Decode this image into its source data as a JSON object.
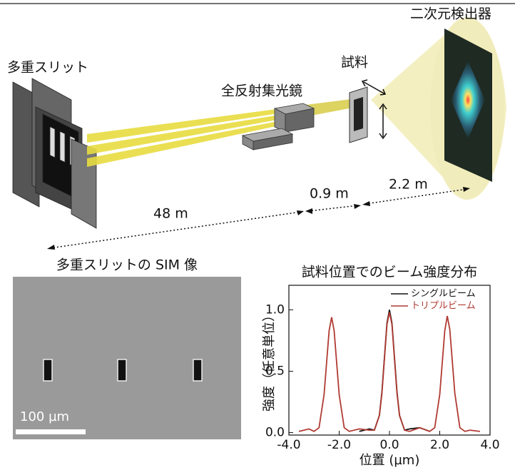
{
  "diagram": {
    "slit_label": "多重スリット",
    "mirror_label": "全反射集光鏡",
    "sample_label": "試料",
    "detector_label": "二次元検出器",
    "dist_1": "48 m",
    "dist_2": "0.9 m",
    "dist_3": "2.2 m"
  },
  "sim_image": {
    "title": "多重スリットの SIM 像",
    "scale_bar": "100 µm"
  },
  "chart_data": {
    "type": "line",
    "title": "試料位置でのビーム強度分布",
    "x_label": "位置 (µm)",
    "y_label": "強度（任意単位）",
    "x": [
      -3.6,
      -3.2,
      -3.0,
      -2.8,
      -2.6,
      -2.5,
      -2.4,
      -2.3,
      -2.2,
      -2.1,
      -2.0,
      -1.8,
      -1.6,
      -1.2,
      -0.8,
      -0.6,
      -0.4,
      -0.3,
      -0.2,
      -0.1,
      0,
      0.1,
      0.2,
      0.3,
      0.4,
      0.6,
      0.8,
      1.2,
      1.6,
      1.8,
      2.0,
      2.1,
      2.2,
      2.3,
      2.4,
      2.5,
      2.6,
      2.8,
      3.0,
      3.2,
      3.6
    ],
    "series": [
      {
        "name": "シングルビーム",
        "color": "#111111",
        "values": [
          null,
          null,
          null,
          null,
          null,
          null,
          null,
          null,
          null,
          null,
          null,
          null,
          null,
          0.01,
          0.03,
          0.02,
          0.14,
          0.33,
          0.61,
          0.89,
          1.0,
          0.89,
          0.61,
          0.33,
          0.14,
          0.02,
          0.03,
          0.04,
          0.01,
          null,
          null,
          null,
          null,
          null,
          null,
          null,
          null,
          null,
          null,
          null,
          null
        ]
      },
      {
        "name": "トリプルビーム",
        "color": "#b03a32",
        "values": [
          0.01,
          0.03,
          0.01,
          0.04,
          0.31,
          0.57,
          0.83,
          0.94,
          0.83,
          0.57,
          0.31,
          0.04,
          0.01,
          0.03,
          0.02,
          0.02,
          0.14,
          0.32,
          0.6,
          0.88,
          0.98,
          0.88,
          0.6,
          0.32,
          0.14,
          0.02,
          0.01,
          0.04,
          0.01,
          0.04,
          0.31,
          0.57,
          0.83,
          0.95,
          0.84,
          0.58,
          0.32,
          0.04,
          0.01,
          0.02,
          0.01
        ]
      }
    ],
    "xlim": [
      -4,
      4
    ],
    "ylim": [
      -0.02,
      1.2
    ],
    "xticks": [
      {
        "value": -4,
        "label": "-4.0"
      },
      {
        "value": -2,
        "label": "-2.0"
      },
      {
        "value": 0,
        "label": "0.0"
      },
      {
        "value": 2,
        "label": "2.0"
      },
      {
        "value": 4,
        "label": "4.0"
      }
    ],
    "yticks": [
      {
        "value": 0,
        "label": "0.0"
      },
      {
        "value": 0.5,
        "label": "0.5"
      },
      {
        "value": 1,
        "label": "1.0"
      }
    ],
    "legend": "upper right"
  }
}
